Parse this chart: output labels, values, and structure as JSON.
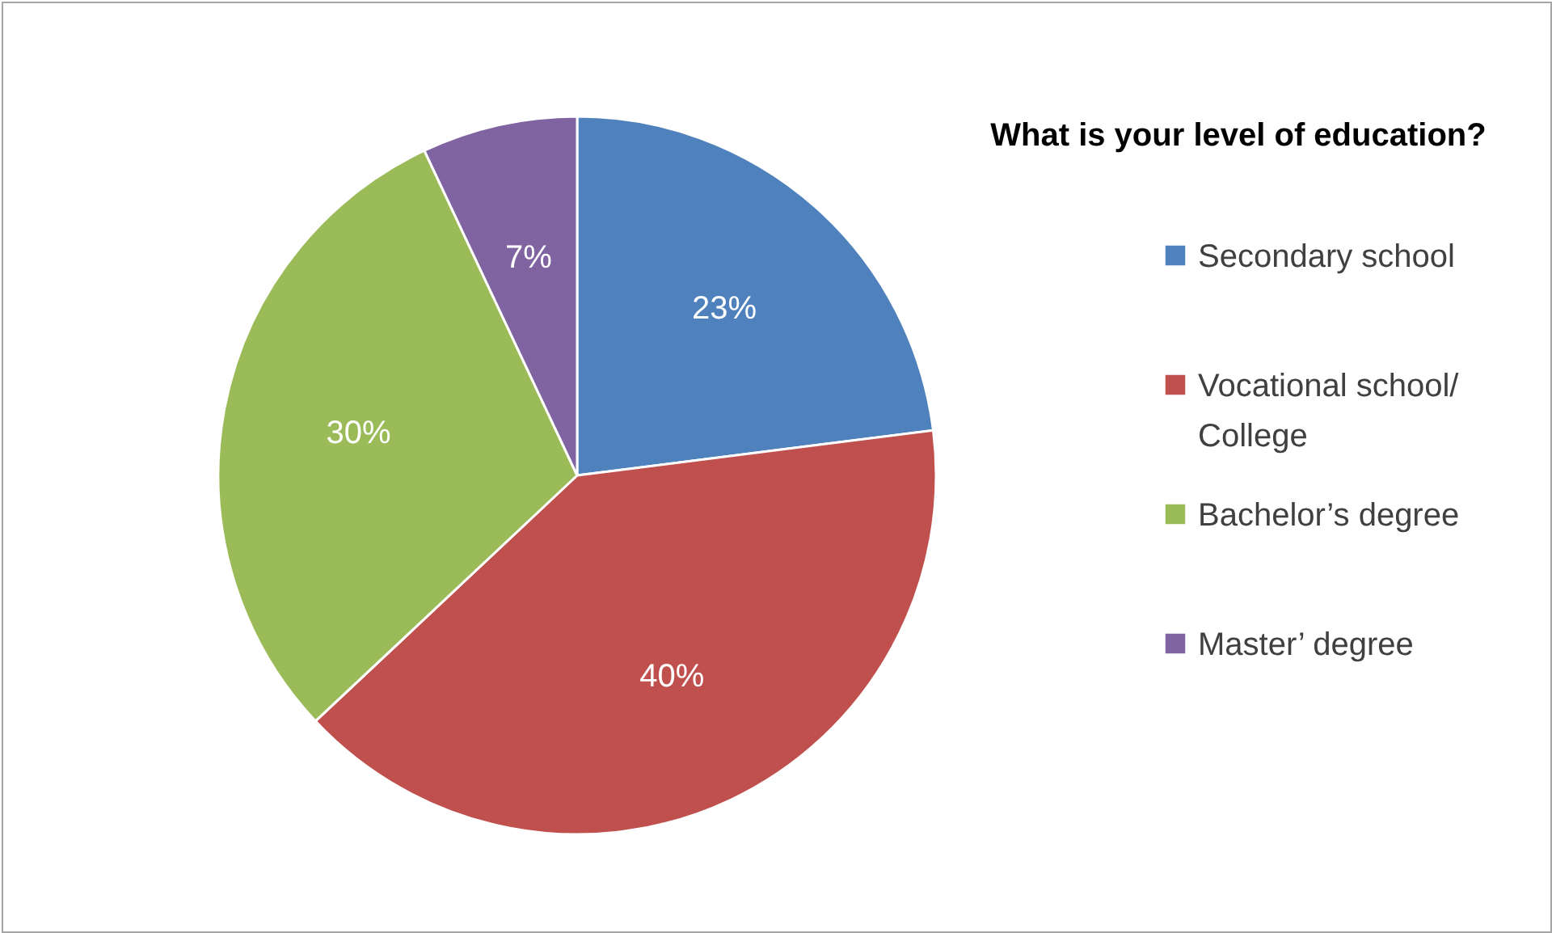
{
  "chart_data": {
    "type": "pie",
    "title": "What is your level of education?",
    "categories": [
      "Secondary school",
      "Vocational school/\nCollege",
      "Bachelor’s degree",
      "Master’ degree"
    ],
    "values": [
      23,
      40,
      30,
      7
    ],
    "colors": [
      "#4f81bd",
      "#c0504d",
      "#9bbb59",
      "#8064a2"
    ],
    "value_labels": [
      "23%",
      "40%",
      "30%",
      "7%"
    ],
    "legend": "right"
  }
}
